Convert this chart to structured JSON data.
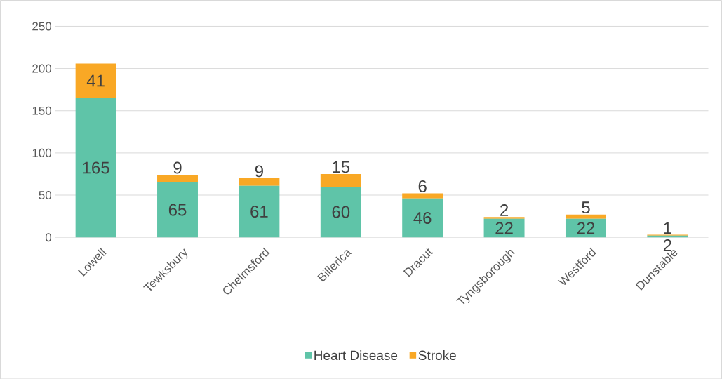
{
  "chart_data": {
    "type": "bar",
    "stacked": true,
    "categories": [
      "Lowell",
      "Tewksbury",
      "Chelmsford",
      "Billerica",
      "Dracut",
      "Tyngsborough",
      "Westford",
      "Dunstable"
    ],
    "series": [
      {
        "name": "Heart Disease",
        "color": "#5fc4a8",
        "values": [
          165,
          65,
          61,
          60,
          46,
          22,
          22,
          2
        ]
      },
      {
        "name": "Stroke",
        "color": "#f9a825",
        "values": [
          41,
          9,
          9,
          15,
          6,
          2,
          5,
          1
        ]
      }
    ],
    "ylim": [
      0,
      250
    ],
    "yticks": [
      0,
      50,
      100,
      150,
      200,
      250
    ],
    "grid": "y",
    "legend": "bottom",
    "data_labels": true
  }
}
